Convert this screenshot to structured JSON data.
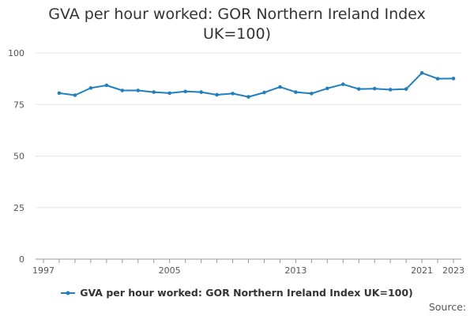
{
  "title": "GVA per hour worked: GOR Northern Ireland Index UK=100)",
  "source_label": "Source:",
  "colors": {
    "series": "#1f7fbf",
    "grid": "#e6e6e6",
    "axis": "#999999",
    "text": "#555555"
  },
  "chart_data": {
    "type": "line",
    "title": "GVA per hour worked: GOR Northern Ireland Index UK=100)",
    "xlabel": "",
    "ylabel": "",
    "xlim": [
      1997,
      2023
    ],
    "ylim": [
      0,
      100
    ],
    "x_tick_labels": [
      "1997",
      "2005",
      "2013",
      "2021",
      "2023"
    ],
    "y_tick_labels": [
      "0",
      "25",
      "50",
      "75",
      "100"
    ],
    "grid": true,
    "legend_position": "bottom",
    "series": [
      {
        "name": "GVA per hour worked: GOR Northern Ireland Index UK=100)",
        "x": [
          1998,
          1999,
          2000,
          2001,
          2002,
          2003,
          2004,
          2005,
          2006,
          2007,
          2008,
          2009,
          2010,
          2011,
          2012,
          2013,
          2014,
          2015,
          2016,
          2017,
          2018,
          2019,
          2020,
          2021,
          2022,
          2023
        ],
        "values": [
          80.5,
          79.5,
          83.0,
          84.3,
          81.8,
          81.8,
          81.0,
          80.5,
          81.3,
          81.0,
          79.7,
          80.3,
          78.7,
          80.8,
          83.5,
          81.0,
          80.3,
          82.8,
          84.8,
          82.5,
          82.7,
          82.2,
          82.5,
          90.3,
          87.5,
          87.6
        ]
      }
    ]
  }
}
